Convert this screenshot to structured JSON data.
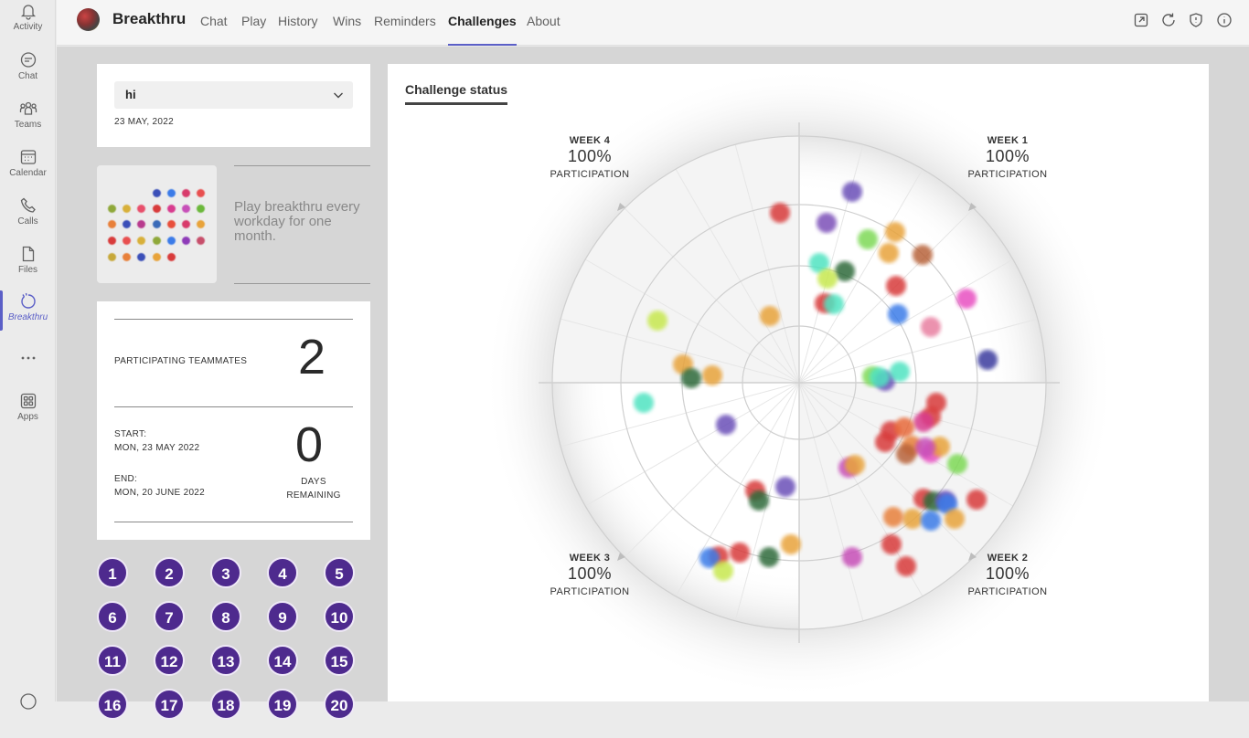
{
  "rail": {
    "items": [
      {
        "label": "Activity",
        "icon": "bell-icon"
      },
      {
        "label": "Chat",
        "icon": "chat-icon"
      },
      {
        "label": "Teams",
        "icon": "teams-icon"
      },
      {
        "label": "Calendar",
        "icon": "calendar-icon"
      },
      {
        "label": "Calls",
        "icon": "phone-icon"
      },
      {
        "label": "Files",
        "icon": "file-icon"
      },
      {
        "label": "Breakthru",
        "icon": "breakthru-icon"
      },
      {
        "label": "",
        "icon": "more-icon"
      },
      {
        "label": "Apps",
        "icon": "apps-icon"
      }
    ]
  },
  "header": {
    "app_name": "Breakthru",
    "tabs": [
      "Chat",
      "Play",
      "History",
      "Wins",
      "Reminders",
      "Challenges",
      "About"
    ],
    "active_tab": "Challenges",
    "icons": [
      "popout-icon",
      "refresh-icon",
      "shield-icon",
      "info-icon"
    ]
  },
  "team": {
    "selected": "hi",
    "date": "23 MAY, 2022"
  },
  "promo": {
    "text": "Play breakthru every workday for one month."
  },
  "stats": {
    "participating_label": "PARTICIPATING TEAMMATES",
    "participating_value": "2",
    "start_label": "START:",
    "start_value": "MON, 23 MAY 2022",
    "end_label": "END:",
    "end_value": "MON, 20 JUNE 2022",
    "days_value": "0",
    "days_label_1": "DAYS",
    "days_label_2": "REMAINING"
  },
  "day_buttons": [
    "1",
    "2",
    "3",
    "4",
    "5",
    "6",
    "7",
    "8",
    "9",
    "10",
    "11",
    "12",
    "13",
    "14",
    "15",
    "16",
    "17",
    "18",
    "19",
    "20"
  ],
  "challenge": {
    "title": "Challenge status",
    "weeks": [
      {
        "week": "WEEK 1",
        "percent": "100%",
        "label": "PARTICIPATION"
      },
      {
        "week": "WEEK 2",
        "percent": "100%",
        "label": "PARTICIPATION"
      },
      {
        "week": "WEEK 3",
        "percent": "100%",
        "label": "PARTICIPATION"
      },
      {
        "week": "WEEK 4",
        "percent": "100%",
        "label": "PARTICIPATION"
      }
    ]
  },
  "colors": {
    "accent": "#5b5fc7",
    "day_button": "#4e2a8e",
    "dot_palette": [
      "#d83b3b",
      "#6b4fb8",
      "#e8a33a",
      "#7ed957",
      "#4fe3c1",
      "#e84fc1",
      "#3b7be8",
      "#c7e84f",
      "#2f6b3a",
      "#b85a3a"
    ]
  }
}
